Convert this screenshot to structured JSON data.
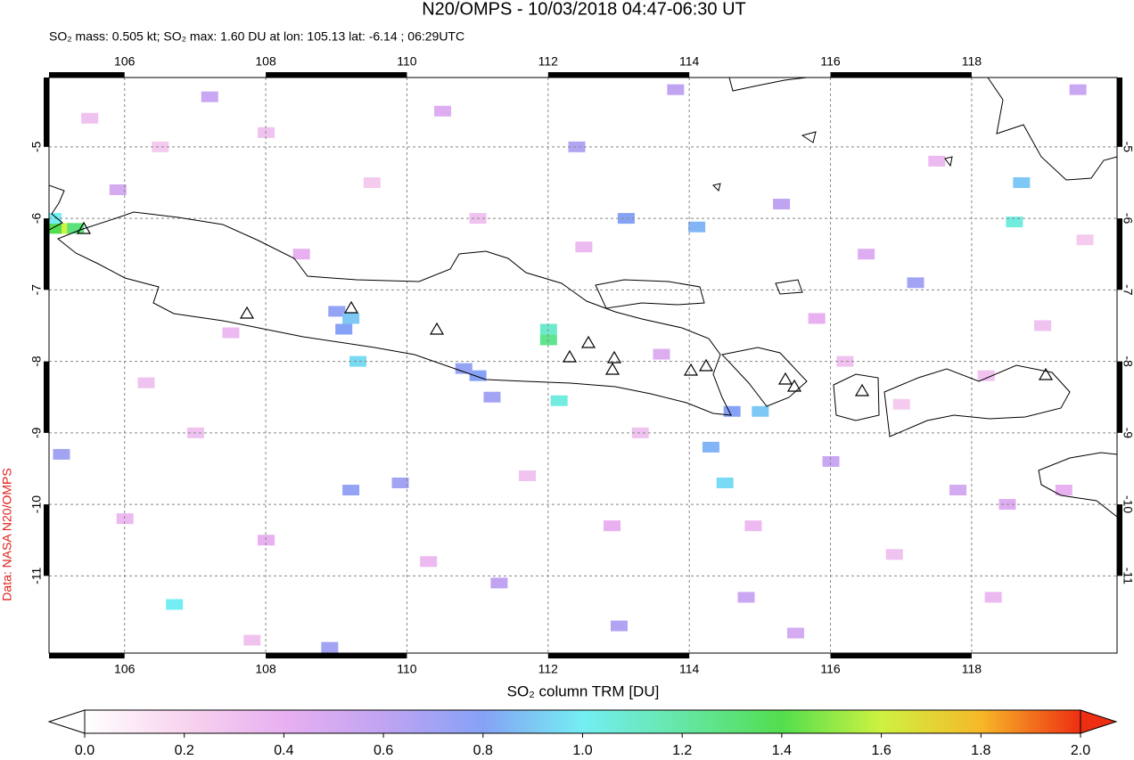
{
  "title": "N20/OMPS - 10/03/2018 04:47-06:30 UT",
  "subtitle": "SO₂ mass: 0.505 kt; SO₂ max: 1.60 DU at lon: 105.13 lat: -6.14 ; 06:29UTC",
  "credit": "Data: NASA N20/OMPS",
  "map": {
    "xlim": [
      104.93,
      120.06
    ],
    "ylim": [
      -4.03,
      -12.08
    ],
    "xticks": [
      106,
      108,
      110,
      112,
      114,
      116,
      118
    ],
    "yticks": [
      -5,
      -6,
      -7,
      -8,
      -9,
      -10,
      -11
    ],
    "grid": true,
    "cells": [
      [
        105.13,
        -6.14,
        1.6
      ],
      [
        104.98,
        -6.14,
        1.4
      ],
      [
        104.98,
        -6.0,
        1.0
      ],
      [
        105.3,
        -6.14,
        1.3
      ],
      [
        109.0,
        -7.3,
        0.75
      ],
      [
        109.2,
        -7.4,
        0.9
      ],
      [
        109.1,
        -7.55,
        0.8
      ],
      [
        109.3,
        -8.0,
        0.95
      ],
      [
        112.0,
        -7.7,
        1.25
      ],
      [
        112.0,
        -7.55,
        1.1
      ],
      [
        112.15,
        -8.55,
        1.05
      ],
      [
        111.0,
        -8.2,
        0.8
      ],
      [
        110.8,
        -8.1,
        0.75
      ],
      [
        111.2,
        -8.5,
        0.7
      ],
      [
        113.1,
        -6.0,
        0.8
      ],
      [
        114.1,
        -6.12,
        0.85
      ],
      [
        114.3,
        -9.2,
        0.85
      ],
      [
        114.5,
        -9.7,
        0.95
      ],
      [
        115.0,
        -8.7,
        0.9
      ],
      [
        114.6,
        -8.7,
        0.8
      ],
      [
        117.2,
        -6.9,
        0.7
      ],
      [
        118.7,
        -5.5,
        0.9
      ],
      [
        118.6,
        -6.05,
        1.05
      ],
      [
        106.7,
        -11.4,
        1.0
      ],
      [
        105.1,
        -9.3,
        0.7
      ],
      [
        109.2,
        -9.8,
        0.75
      ],
      [
        109.9,
        -9.7,
        0.7
      ],
      [
        112.4,
        -5.0,
        0.65
      ],
      [
        113.8,
        -4.2,
        0.6
      ],
      [
        115.3,
        -5.8,
        0.6
      ],
      [
        119.5,
        -4.2,
        0.55
      ],
      [
        107.2,
        -4.3,
        0.55
      ],
      [
        105.9,
        -5.6,
        0.5
      ],
      [
        116.0,
        -9.4,
        0.55
      ],
      [
        117.8,
        -9.8,
        0.5
      ],
      [
        118.5,
        -10.0,
        0.45
      ],
      [
        111.3,
        -11.1,
        0.6
      ],
      [
        113.0,
        -11.7,
        0.65
      ],
      [
        108.9,
        -12.0,
        0.7
      ],
      [
        114.8,
        -11.3,
        0.55
      ],
      [
        115.5,
        -11.8,
        0.5
      ],
      [
        110.5,
        -4.5,
        0.45
      ],
      [
        108.5,
        -6.5,
        0.4
      ],
      [
        107.5,
        -7.6,
        0.35
      ],
      [
        106.3,
        -8.3,
        0.3
      ],
      [
        106.0,
        -10.2,
        0.35
      ],
      [
        107.0,
        -9.0,
        0.3
      ],
      [
        108.0,
        -10.5,
        0.4
      ],
      [
        110.3,
        -10.8,
        0.35
      ],
      [
        111.7,
        -9.6,
        0.3
      ],
      [
        112.9,
        -10.3,
        0.4
      ],
      [
        113.6,
        -7.9,
        0.45
      ],
      [
        115.8,
        -7.4,
        0.4
      ],
      [
        116.5,
        -6.5,
        0.45
      ],
      [
        117.5,
        -5.2,
        0.35
      ],
      [
        119.0,
        -7.5,
        0.3
      ],
      [
        119.3,
        -9.8,
        0.4
      ],
      [
        118.3,
        -11.3,
        0.35
      ],
      [
        116.9,
        -10.7,
        0.3
      ],
      [
        105.5,
        -4.6,
        0.3
      ],
      [
        106.5,
        -5.0,
        0.25
      ],
      [
        108.0,
        -4.8,
        0.3
      ],
      [
        109.5,
        -5.5,
        0.25
      ],
      [
        111.0,
        -6.0,
        0.3
      ],
      [
        112.5,
        -6.4,
        0.35
      ],
      [
        113.3,
        -9.0,
        0.3
      ],
      [
        114.9,
        -10.3,
        0.35
      ],
      [
        116.2,
        -8.0,
        0.3
      ],
      [
        117.0,
        -8.6,
        0.25
      ],
      [
        118.2,
        -8.2,
        0.3
      ],
      [
        119.6,
        -6.3,
        0.25
      ],
      [
        107.8,
        -11.9,
        0.3
      ]
    ]
  },
  "colorbar": {
    "label": "SO₂ column TRM [DU]",
    "range": [
      0,
      2
    ],
    "colors": [
      "#ffffff",
      "#f8d4ee",
      "#e8b0f0",
      "#c0a4f2",
      "#86a2f6",
      "#74eef2",
      "#66e6a6",
      "#52de4e",
      "#cef240",
      "#f6b828",
      "#ee2e12"
    ],
    "ticks": [
      {
        "value": 0,
        "label": "0.0"
      },
      {
        "value": 0.2,
        "label": "0.2"
      },
      {
        "value": 0.4,
        "label": "0.4"
      },
      {
        "value": 0.6,
        "label": "0.6"
      },
      {
        "value": 0.8,
        "label": "0.8"
      },
      {
        "value": 1.0,
        "label": "1.0"
      },
      {
        "value": 1.2,
        "label": "1.2"
      },
      {
        "value": 1.4,
        "label": "1.4"
      },
      {
        "value": 1.6,
        "label": "1.6"
      },
      {
        "value": 1.8,
        "label": "1.8"
      },
      {
        "value": 2.0,
        "label": "2.0"
      }
    ]
  }
}
